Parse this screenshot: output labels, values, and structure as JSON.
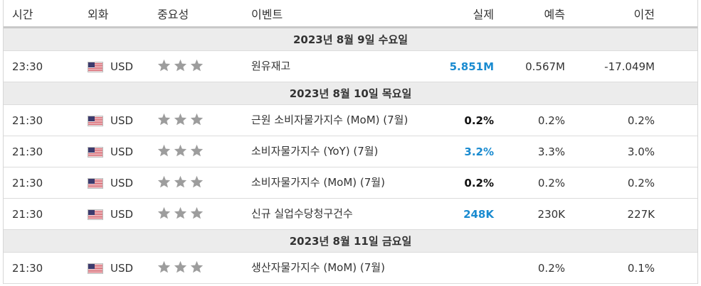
{
  "table": {
    "headers": [
      "시간",
      "외화",
      "중요성",
      "이벤트",
      "실제",
      "예측",
      "이전"
    ],
    "sections": [
      {
        "date": "2023년 8월 9일 수요일",
        "rows": [
          {
            "time": "23:30",
            "currency": "USD",
            "event": "원유재고",
            "actual": "5.851M",
            "actual_color": "#1a8bd0",
            "forecast": "0.567M",
            "previous": "-17.049M"
          }
        ]
      },
      {
        "date": "2023년 8월 10일 목요일",
        "rows": [
          {
            "time": "21:30",
            "currency": "USD",
            "event": "근원 소비자물가지수 (MoM) (7월)",
            "actual": "0.2%",
            "actual_color": "#111111",
            "forecast": "0.2%",
            "previous": "0.2%"
          },
          {
            "time": "21:30",
            "currency": "USD",
            "event": "소비자물가지수 (YoY) (7월)",
            "actual": "3.2%",
            "actual_color": "#1a8bd0",
            "forecast": "3.3%",
            "previous": "3.0%"
          },
          {
            "time": "21:30",
            "currency": "USD",
            "event": "소비자물가지수 (MoM) (7월)",
            "actual": "0.2%",
            "actual_color": "#111111",
            "forecast": "0.2%",
            "previous": "0.2%"
          },
          {
            "time": "21:30",
            "currency": "USD",
            "event": "신규 실업수당청구건수",
            "actual": "248K",
            "actual_color": "#1a8bd0",
            "forecast": "230K",
            "previous": "227K"
          }
        ]
      },
      {
        "date": "2023년 8월 11일 금요일",
        "rows": [
          {
            "time": "21:30",
            "currency": "USD",
            "event": "생산자물가지수 (MoM) (7월)",
            "actual": null,
            "forecast": "0.2%",
            "previous": "0.1%"
          }
        ]
      }
    ]
  }
}
